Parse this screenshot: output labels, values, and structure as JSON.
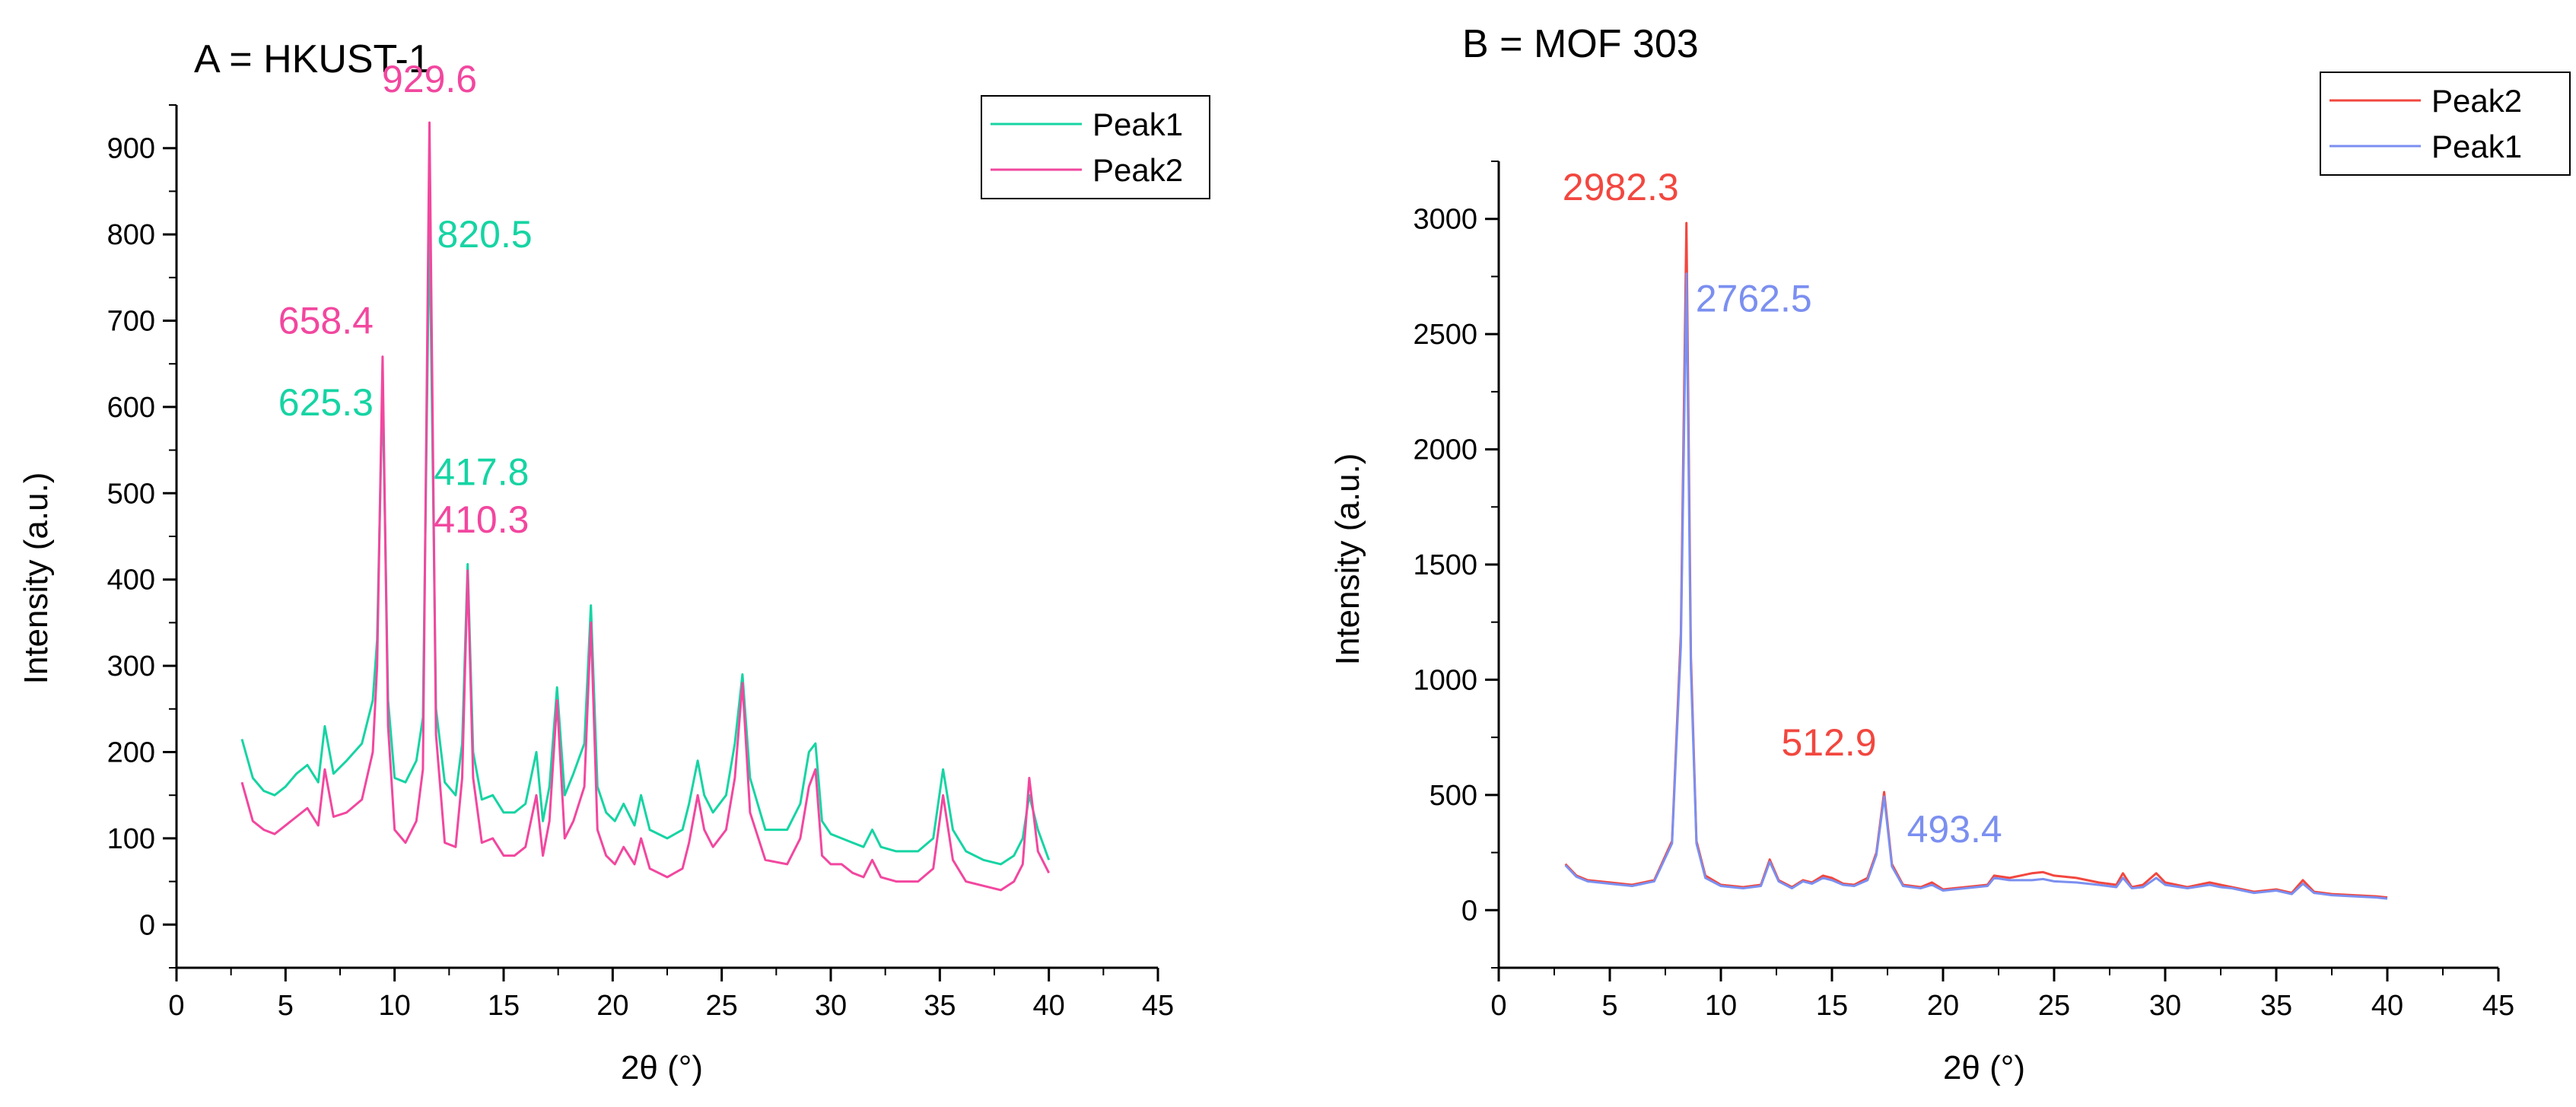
{
  "chart_data": [
    {
      "panel_title": "A = HKUST-1",
      "type": "line",
      "xlabel": "2θ (°)",
      "ylabel": "Intensity (a.u.)",
      "xlim": [
        0,
        45
      ],
      "ylim": [
        -50,
        950
      ],
      "xticks": [
        0,
        5,
        10,
        15,
        20,
        25,
        30,
        35,
        40,
        45
      ],
      "yticks": [
        0,
        100,
        200,
        300,
        400,
        500,
        600,
        700,
        800,
        900
      ],
      "legend_position": "top-right",
      "legend": [
        {
          "name": "Peak1",
          "color": "#16d4a3"
        },
        {
          "name": "Peak2",
          "color": "#f2479f"
        }
      ],
      "series": [
        {
          "name": "Peak1",
          "color": "#16d4a3",
          "x": [
            3,
            3.5,
            4,
            4.5,
            5,
            5.5,
            6,
            6.5,
            6.8,
            7.2,
            7.8,
            8.5,
            9.0,
            9.2,
            9.45,
            9.7,
            10.0,
            10.5,
            11.0,
            11.3,
            11.6,
            11.9,
            12.3,
            12.8,
            13.1,
            13.35,
            13.6,
            14.0,
            14.5,
            15.0,
            15.5,
            16.0,
            16.5,
            16.8,
            17.1,
            17.45,
            17.8,
            18.2,
            18.7,
            19.0,
            19.3,
            19.7,
            20.1,
            20.5,
            21.0,
            21.3,
            21.7,
            22.5,
            23.2,
            23.5,
            23.9,
            24.2,
            24.6,
            25.2,
            25.6,
            25.95,
            26.3,
            27.0,
            28.0,
            28.6,
            29.0,
            29.3,
            29.6,
            30.0,
            30.5,
            31.0,
            31.5,
            31.9,
            32.3,
            33.0,
            34.0,
            34.7,
            35.15,
            35.6,
            36.2,
            37.0,
            37.8,
            38.4,
            38.8,
            39.1,
            39.5,
            40.0
          ],
          "y": [
            215,
            170,
            155,
            150,
            160,
            175,
            185,
            165,
            230,
            175,
            190,
            210,
            260,
            330,
            625.3,
            260,
            170,
            165,
            190,
            240,
            820.5,
            250,
            165,
            150,
            210,
            417.8,
            200,
            145,
            150,
            130,
            130,
            140,
            200,
            120,
            160,
            275,
            150,
            175,
            210,
            370,
            160,
            130,
            120,
            140,
            115,
            150,
            110,
            100,
            110,
            140,
            190,
            150,
            130,
            150,
            210,
            290,
            170,
            110,
            110,
            140,
            200,
            210,
            120,
            105,
            100,
            95,
            90,
            110,
            90,
            85,
            85,
            100,
            180,
            110,
            85,
            75,
            70,
            80,
            100,
            150,
            110,
            75
          ]
        },
        {
          "name": "Peak2",
          "color": "#f2479f",
          "x": [
            3,
            3.5,
            4,
            4.5,
            5,
            5.5,
            6,
            6.5,
            6.8,
            7.2,
            7.8,
            8.5,
            9.0,
            9.2,
            9.45,
            9.7,
            10.0,
            10.5,
            11.0,
            11.3,
            11.6,
            11.9,
            12.3,
            12.8,
            13.1,
            13.35,
            13.6,
            14.0,
            14.5,
            15.0,
            15.5,
            16.0,
            16.5,
            16.8,
            17.1,
            17.45,
            17.8,
            18.2,
            18.7,
            19.0,
            19.3,
            19.7,
            20.1,
            20.5,
            21.0,
            21.3,
            21.7,
            22.5,
            23.2,
            23.5,
            23.9,
            24.2,
            24.6,
            25.2,
            25.6,
            25.95,
            26.3,
            27.0,
            28.0,
            28.6,
            29.0,
            29.3,
            29.6,
            30.0,
            30.5,
            31.0,
            31.5,
            31.9,
            32.3,
            33.0,
            34.0,
            34.7,
            35.15,
            35.6,
            36.2,
            37.0,
            37.8,
            38.4,
            38.8,
            39.1,
            39.5,
            40.0
          ],
          "y": [
            165,
            120,
            110,
            105,
            115,
            125,
            135,
            115,
            180,
            125,
            130,
            145,
            200,
            300,
            658.4,
            230,
            110,
            95,
            120,
            180,
            929.6,
            220,
            95,
            90,
            170,
            410.3,
            170,
            95,
            100,
            80,
            80,
            90,
            150,
            80,
            120,
            260,
            100,
            120,
            160,
            350,
            110,
            80,
            70,
            90,
            70,
            100,
            65,
            55,
            65,
            95,
            150,
            110,
            90,
            110,
            170,
            280,
            130,
            75,
            70,
            100,
            160,
            180,
            80,
            70,
            70,
            60,
            55,
            75,
            55,
            50,
            50,
            65,
            150,
            75,
            50,
            45,
            40,
            50,
            70,
            170,
            85,
            60
          ]
        }
      ],
      "annotations": [
        {
          "text": "929.6",
          "x": 11.6,
          "y": 929.6,
          "color": "#f2479f"
        },
        {
          "text": "820.5",
          "x": 11.6,
          "y": 820.5,
          "color": "#16d4a3"
        },
        {
          "text": "658.4",
          "x": 9.45,
          "y": 658.4,
          "color": "#f2479f"
        },
        {
          "text": "625.3",
          "x": 9.45,
          "y": 625.3,
          "color": "#16d4a3"
        },
        {
          "text": "417.8",
          "x": 13.35,
          "y": 417.8,
          "color": "#16d4a3"
        },
        {
          "text": "410.3",
          "x": 13.35,
          "y": 410.3,
          "color": "#f2479f"
        }
      ]
    },
    {
      "panel_title": "B = MOF 303",
      "type": "line",
      "xlabel": "2θ (°)",
      "ylabel": "Intensity (a.u.)",
      "xlim": [
        0,
        45
      ],
      "ylim": [
        -250,
        3250
      ],
      "xticks": [
        0,
        5,
        10,
        15,
        20,
        25,
        30,
        35,
        40,
        45
      ],
      "yticks": [
        0,
        500,
        1000,
        1500,
        2000,
        2500,
        3000
      ],
      "legend_position": "top-right",
      "legend": [
        {
          "name": "Peak2",
          "color": "#f2473f"
        },
        {
          "name": "Peak1",
          "color": "#7b8ff0"
        }
      ],
      "series": [
        {
          "name": "Peak2",
          "color": "#f2473f",
          "x": [
            3,
            3.5,
            4,
            5,
            6,
            7,
            7.8,
            8.2,
            8.45,
            8.65,
            8.9,
            9.3,
            10.0,
            11.0,
            11.8,
            12.2,
            12.6,
            13.2,
            13.7,
            14.1,
            14.6,
            15.0,
            15.5,
            16.0,
            16.6,
            17.0,
            17.35,
            17.7,
            18.2,
            19.0,
            19.5,
            20.0,
            21.0,
            22.0,
            22.3,
            23.0,
            24.0,
            24.5,
            25.0,
            26.0,
            27.0,
            27.8,
            28.1,
            28.5,
            29.0,
            29.6,
            30.0,
            31.0,
            32.0,
            32.5,
            33.0,
            34.0,
            35.0,
            35.7,
            36.2,
            36.7,
            37.5,
            38.5,
            39.5,
            40.0
          ],
          "y": [
            200,
            150,
            130,
            120,
            110,
            130,
            300,
            1200,
            2982.3,
            1100,
            300,
            150,
            110,
            100,
            110,
            220,
            130,
            100,
            130,
            120,
            150,
            140,
            115,
            110,
            140,
            250,
            512.9,
            200,
            110,
            100,
            120,
            90,
            100,
            110,
            150,
            140,
            160,
            165,
            150,
            140,
            120,
            110,
            160,
            100,
            110,
            160,
            120,
            100,
            120,
            110,
            100,
            80,
            90,
            75,
            130,
            80,
            70,
            65,
            60,
            55
          ]
        },
        {
          "name": "Peak1",
          "color": "#7b8ff0",
          "x": [
            3,
            3.5,
            4,
            5,
            6,
            7,
            7.8,
            8.2,
            8.45,
            8.65,
            8.9,
            9.3,
            10.0,
            11.0,
            11.8,
            12.2,
            12.6,
            13.2,
            13.7,
            14.1,
            14.6,
            15.0,
            15.5,
            16.0,
            16.6,
            17.0,
            17.35,
            17.7,
            18.2,
            19.0,
            19.5,
            20.0,
            21.0,
            22.0,
            22.3,
            23.0,
            24.0,
            24.5,
            25.0,
            26.0,
            27.0,
            27.8,
            28.1,
            28.5,
            29.0,
            29.6,
            30.0,
            31.0,
            32.0,
            32.5,
            33.0,
            34.0,
            35.0,
            35.7,
            36.2,
            36.7,
            37.5,
            38.5,
            39.5,
            40.0
          ],
          "y": [
            195,
            145,
            125,
            115,
            105,
            125,
            290,
            1150,
            2762.5,
            1050,
            290,
            140,
            105,
            95,
            105,
            210,
            125,
            95,
            125,
            115,
            140,
            130,
            110,
            105,
            130,
            240,
            493.4,
            190,
            105,
            95,
            110,
            85,
            95,
            105,
            140,
            130,
            130,
            135,
            125,
            120,
            110,
            100,
            140,
            95,
            100,
            140,
            110,
            95,
            110,
            100,
            95,
            75,
            85,
            70,
            115,
            75,
            65,
            60,
            55,
            50
          ]
        }
      ],
      "annotations": [
        {
          "text": "2982.3",
          "x": 8.45,
          "y": 2982.3,
          "color": "#f2473f"
        },
        {
          "text": "2762.5",
          "x": 8.45,
          "y": 2762.5,
          "color": "#7b8ff0"
        },
        {
          "text": "512.9",
          "x": 17.35,
          "y": 512.9,
          "color": "#f2473f"
        },
        {
          "text": "493.4",
          "x": 17.35,
          "y": 493.4,
          "color": "#7b8ff0"
        }
      ]
    }
  ]
}
